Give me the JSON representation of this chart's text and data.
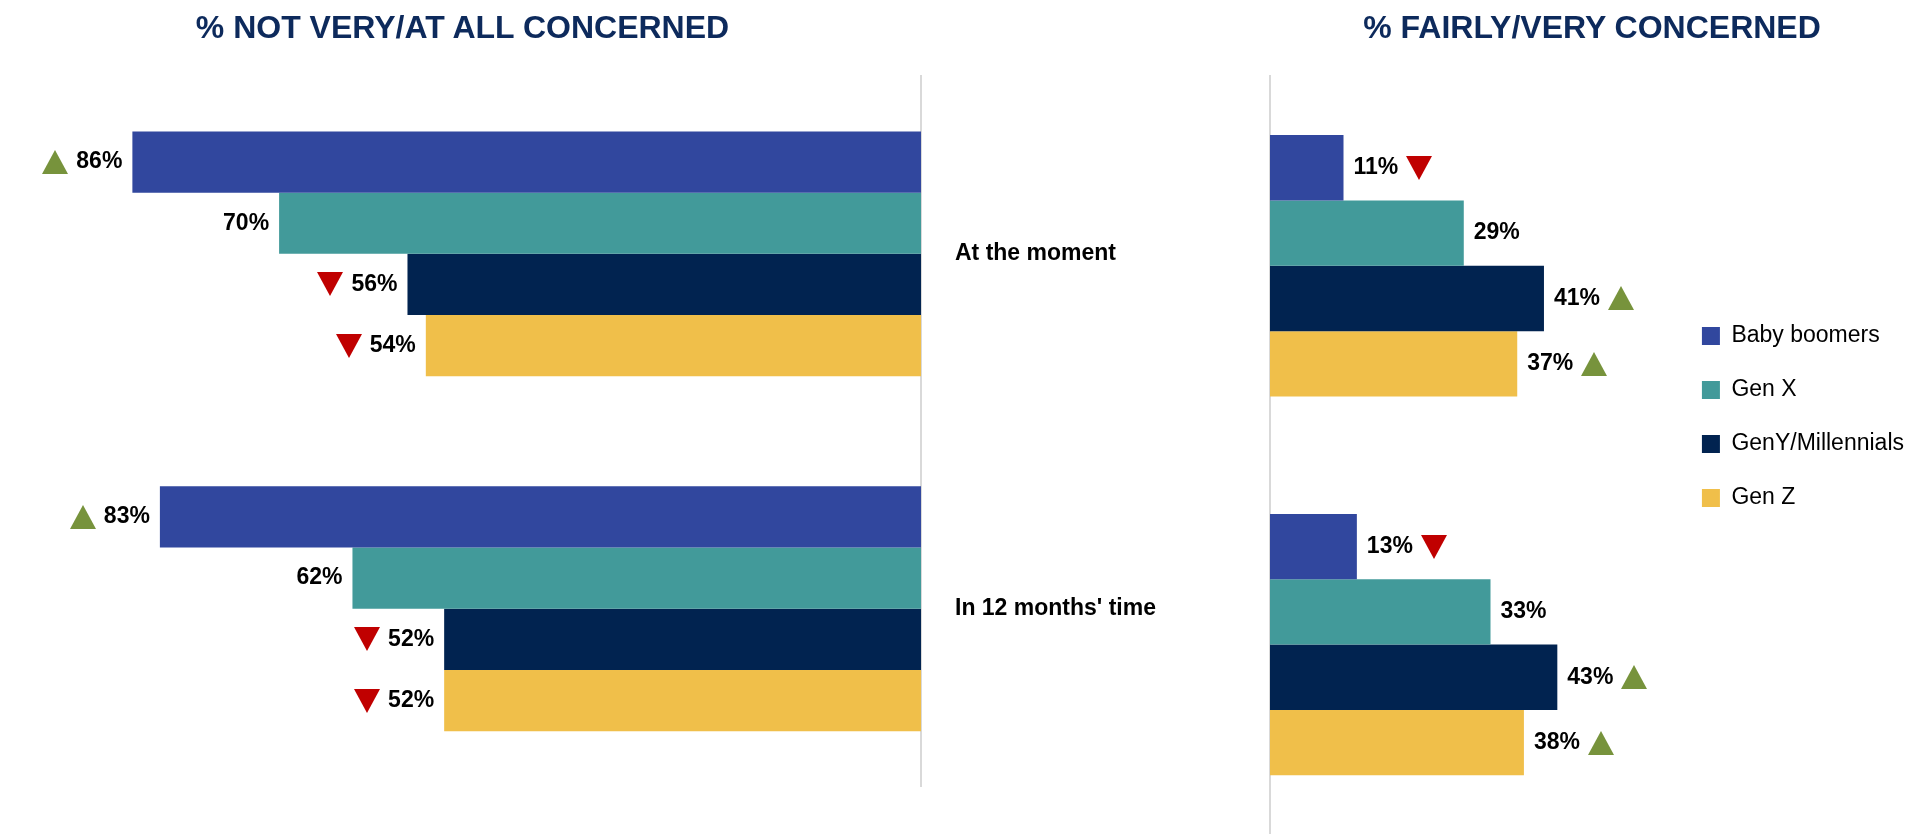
{
  "chart_data": [
    {
      "type": "bar",
      "orientation": "horizontal",
      "title": "% NOT VERY/AT ALL CONCERNED",
      "categories": [
        "At the moment",
        "In 12 months' time"
      ],
      "grid": false,
      "legend": false,
      "tick_labels": "y",
      "series": [
        {
          "color": "#31479e",
          "values": [
            86,
            83
          ],
          "value_labels": [
            "86%",
            "83%"
          ]
        },
        {
          "color": "#429a9a",
          "values": [
            70,
            62
          ],
          "value_labels": [
            "70%",
            "62%"
          ]
        },
        {
          "color": "#012350",
          "values": [
            56,
            52
          ],
          "value_labels": [
            "56%",
            "52%"
          ]
        },
        {
          "color": "#f0bf4a",
          "values": [
            54,
            52
          ],
          "value_labels": [
            "54%",
            "52%"
          ]
        }
      ]
    },
    {
      "type": "bar",
      "orientation": "horizontal",
      "title": "% FAIRLY/VERY CONCERNED",
      "categories": [
        null,
        null
      ],
      "grid": false,
      "legend": "right",
      "tick_labels": false,
      "series": [
        {
          "name": "Baby boomers",
          "color": "#31479e",
          "values": [
            11,
            13
          ],
          "value_labels": [
            "11%",
            "13%"
          ]
        },
        {
          "name": "Gen X",
          "color": "#429a9a",
          "values": [
            29,
            33
          ],
          "value_labels": [
            "29%",
            "33%"
          ]
        },
        {
          "name": "GenY/Millennials",
          "color": "#012350",
          "values": [
            41,
            43
          ],
          "value_labels": [
            "41%",
            "43%"
          ]
        },
        {
          "name": "Gen Z",
          "color": "#f0bf4a",
          "values": [
            37,
            38
          ],
          "value_labels": [
            "37%",
            "38%"
          ]
        }
      ]
    }
  ]
}
